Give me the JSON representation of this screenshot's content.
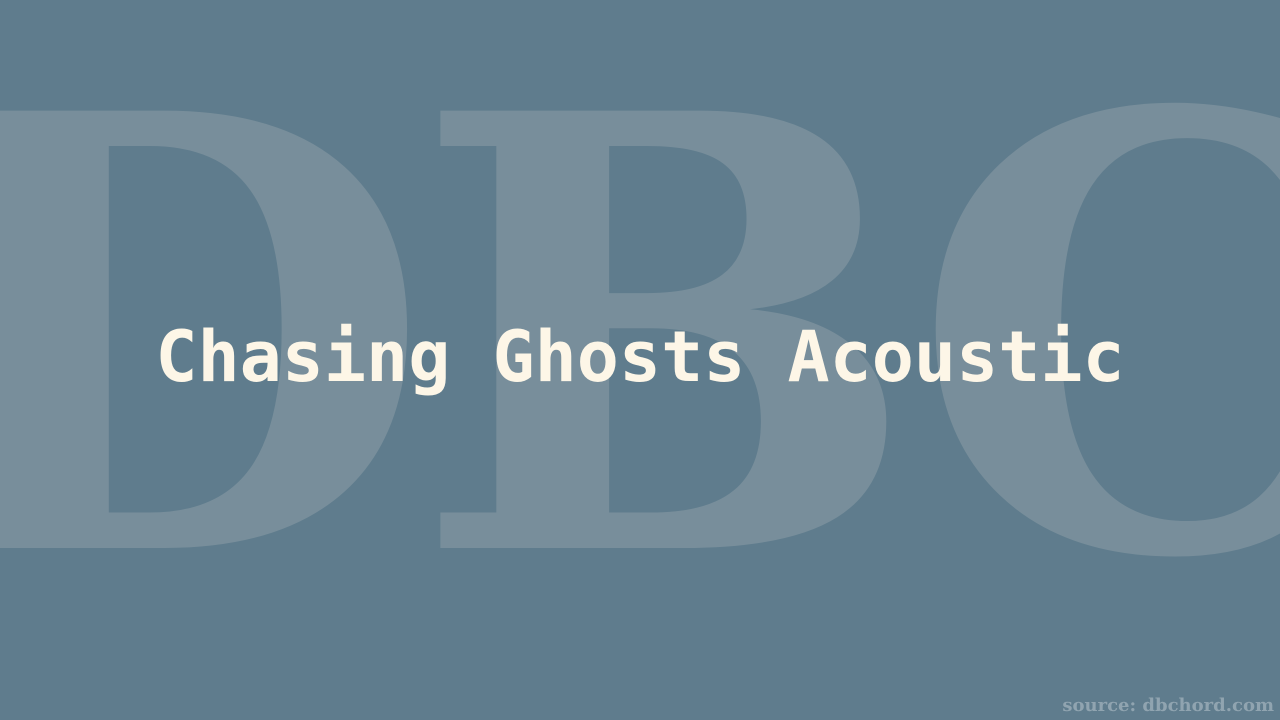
{
  "watermark": {
    "text": "DBC"
  },
  "title": "Chasing Ghosts Acoustic",
  "source": "source: dbchord.com",
  "colors": {
    "background": "#5f7c8d",
    "watermark": "#7a909c",
    "title": "#fdf6e7",
    "source": "#90a4b0"
  }
}
